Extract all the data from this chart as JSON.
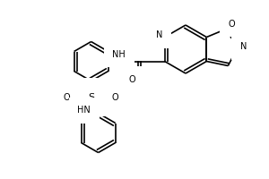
{
  "bg_color": "#ffffff",
  "line_color": "#000000",
  "line_width": 1.2,
  "figsize": [
    3.0,
    2.0
  ],
  "dpi": 100,
  "xlim": [
    0,
    300
  ],
  "ylim": [
    0,
    200
  ]
}
